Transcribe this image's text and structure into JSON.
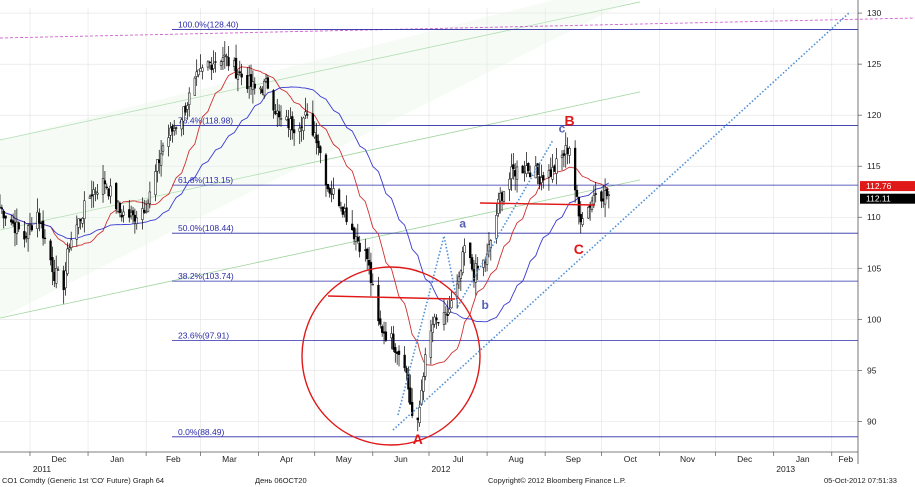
{
  "chart_data": {
    "type": "candlestick",
    "x_axis": {
      "ticks": [
        {
          "label": "Dec",
          "date": "2011-12-01"
        },
        {
          "label": "Jan",
          "date": "2012-01-01"
        },
        {
          "label": "Feb",
          "date": "2012-02-01"
        },
        {
          "label": "Mar",
          "date": "2012-03-01"
        },
        {
          "label": "Apr",
          "date": "2012-04-01"
        },
        {
          "label": "May",
          "date": "2012-05-01"
        },
        {
          "label": "Jun",
          "date": "2012-06-01"
        },
        {
          "label": "Jul",
          "date": "2012-07-01"
        },
        {
          "label": "Aug",
          "date": "2012-08-01"
        },
        {
          "label": "Sep",
          "date": "2012-09-01"
        },
        {
          "label": "Oct",
          "date": "2012-10-01"
        },
        {
          "label": "Nov",
          "date": "2012-11-01"
        },
        {
          "label": "Dec",
          "date": "2012-12-01"
        },
        {
          "label": "Jan",
          "date": "2013-01-01"
        },
        {
          "label": "Feb",
          "date": "2013-02-01"
        }
      ],
      "years": [
        {
          "label": "2011",
          "date": "2011-12-01"
        },
        {
          "label": "2012",
          "date": "2012-07-01"
        },
        {
          "label": "2013",
          "date": "2013-01-01"
        }
      ],
      "range": [
        "2011-11-15",
        "2013-02-15"
      ]
    },
    "y_axis": {
      "ticks": [
        90,
        95,
        100,
        105,
        110,
        115,
        120,
        125,
        130
      ],
      "range": [
        87.0,
        130.5
      ],
      "position": "right"
    },
    "price_labels": [
      {
        "value": 112.76,
        "text": "112.76",
        "color": "#e01818"
      },
      {
        "value": 112.11,
        "text": "112.11",
        "color": "#000000"
      }
    ],
    "fib_levels": [
      {
        "text": "100.0%(128.40)",
        "value": 128.4
      },
      {
        "text": "76.4%(118.98)",
        "value": 118.98
      },
      {
        "text": "61.8%(113.15)",
        "value": 113.15
      },
      {
        "text": "50.0%(108.44)",
        "value": 108.44
      },
      {
        "text": "38.2%(103.74)",
        "value": 103.74
      },
      {
        "text": "23.6%(97.91)",
        "value": 97.91
      },
      {
        "text": "0.0%(88.49)",
        "value": 88.49
      }
    ],
    "ohlc_anchors": [
      {
        "date": "2011-11-15",
        "close": 111.0
      },
      {
        "date": "2011-11-28",
        "close": 108.0
      },
      {
        "date": "2011-12-05",
        "close": 110.5
      },
      {
        "date": "2011-12-14",
        "close": 104.5
      },
      {
        "date": "2011-12-19",
        "close": 103.5
      },
      {
        "date": "2011-12-22",
        "close": 107.5
      },
      {
        "date": "2012-01-03",
        "close": 112.5
      },
      {
        "date": "2012-01-10",
        "close": 113.5
      },
      {
        "date": "2012-01-18",
        "close": 110.5
      },
      {
        "date": "2012-01-25",
        "close": 110.0
      },
      {
        "date": "2012-02-02",
        "close": 111.5
      },
      {
        "date": "2012-02-10",
        "close": 117.0
      },
      {
        "date": "2012-02-20",
        "close": 120.0
      },
      {
        "date": "2012-02-28",
        "close": 123.5
      },
      {
        "date": "2012-03-05",
        "close": 125.0
      },
      {
        "date": "2012-03-13",
        "close": 125.8
      },
      {
        "date": "2012-03-22",
        "close": 124.0
      },
      {
        "date": "2012-03-30",
        "close": 122.5
      },
      {
        "date": "2012-04-06",
        "close": 123.0
      },
      {
        "date": "2012-04-12",
        "close": 119.5
      },
      {
        "date": "2012-04-20",
        "close": 119.0
      },
      {
        "date": "2012-04-26",
        "close": 119.8
      },
      {
        "date": "2012-05-02",
        "close": 118.0
      },
      {
        "date": "2012-05-08",
        "close": 113.0
      },
      {
        "date": "2012-05-15",
        "close": 111.5
      },
      {
        "date": "2012-05-22",
        "close": 108.5
      },
      {
        "date": "2012-05-29",
        "close": 106.0
      },
      {
        "date": "2012-06-04",
        "close": 99.5
      },
      {
        "date": "2012-06-11",
        "close": 98.0
      },
      {
        "date": "2012-06-18",
        "close": 96.0
      },
      {
        "date": "2012-06-22",
        "close": 90.5
      },
      {
        "date": "2012-06-25",
        "close": 89.5
      },
      {
        "date": "2012-06-28",
        "close": 95.0
      },
      {
        "date": "2012-07-03",
        "close": 99.5
      },
      {
        "date": "2012-07-10",
        "close": 100.0
      },
      {
        "date": "2012-07-17",
        "close": 103.5
      },
      {
        "date": "2012-07-20",
        "close": 107.0
      },
      {
        "date": "2012-07-25",
        "close": 104.5
      },
      {
        "date": "2012-08-01",
        "close": 106.0
      },
      {
        "date": "2012-08-08",
        "close": 112.0
      },
      {
        "date": "2012-08-15",
        "close": 114.5
      },
      {
        "date": "2012-08-22",
        "close": 115.0
      },
      {
        "date": "2012-08-29",
        "close": 114.0
      },
      {
        "date": "2012-09-05",
        "close": 114.5
      },
      {
        "date": "2012-09-12",
        "close": 116.5
      },
      {
        "date": "2012-09-14",
        "close": 117.0
      },
      {
        "date": "2012-09-19",
        "close": 110.0
      },
      {
        "date": "2012-09-24",
        "close": 111.0
      },
      {
        "date": "2012-09-28",
        "close": 112.5
      },
      {
        "date": "2012-10-05",
        "close": 112.11
      }
    ],
    "annotations": [
      {
        "label": "A",
        "date": "2012-06-25",
        "value": 87.8,
        "color": "#e01818"
      },
      {
        "label": "B",
        "date": "2012-09-14",
        "value": 119.0,
        "color": "#e01818"
      },
      {
        "label": "C",
        "date": "2012-09-19",
        "value": 106.4,
        "color": "#e01818"
      },
      {
        "label": "a",
        "date": "2012-07-19",
        "value": 109.0,
        "color": "#5560b8"
      },
      {
        "label": "b",
        "date": "2012-07-31",
        "value": 101.0,
        "color": "#5560b8"
      },
      {
        "label": "c",
        "date": "2012-09-10",
        "value": 118.3,
        "color": "#5560b8"
      }
    ],
    "grid": true
  },
  "footer": {
    "left": "CO1 Comdty (Generic 1st 'CO' Future) Graph 64",
    "center_left": "День 06ОСТ20",
    "center": "Copyright© 2012 Bloomberg Finance L.P.",
    "right": "05-Oct-2012 07:51:33"
  },
  "colors": {
    "candles": "#000000",
    "fib": "#2b2ba8",
    "ma_short": "#d03030",
    "ma_long": "#3a3ad0",
    "channel": "#9cd49c",
    "trendline_dotted": "#4f8fd6",
    "resistance_dashed": "#d060d0",
    "annotation_red": "#e01818",
    "annotation_blue": "#5560b8"
  }
}
